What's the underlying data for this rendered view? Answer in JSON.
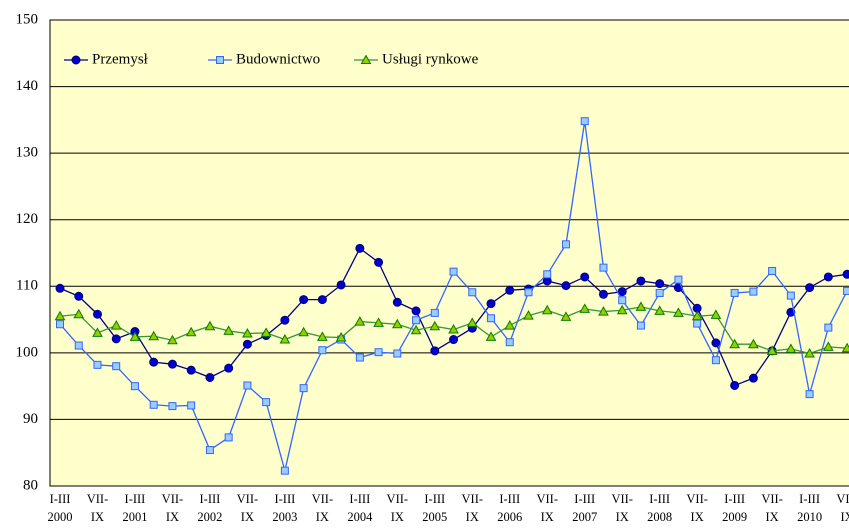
{
  "chart_data": {
    "type": "line",
    "categories": [
      [
        "I-III",
        "2000"
      ],
      null,
      [
        "VII-",
        "IX"
      ],
      null,
      [
        "I-III",
        "2001"
      ],
      null,
      [
        "VII-",
        "IX"
      ],
      null,
      [
        "I-III",
        "2002"
      ],
      null,
      [
        "VII-",
        "IX"
      ],
      null,
      [
        "I-III",
        "2003"
      ],
      null,
      [
        "VII-",
        "IX"
      ],
      null,
      [
        "I-III",
        "2004"
      ],
      null,
      [
        "VII-",
        "IX"
      ],
      null,
      [
        "I-III",
        "2005"
      ],
      null,
      [
        "VII-",
        "IX"
      ],
      null,
      [
        "I-III",
        "2006"
      ],
      null,
      [
        "VII-",
        "IX"
      ],
      null,
      [
        "I-III",
        "2007"
      ],
      null,
      [
        "VII-",
        "IX"
      ],
      null,
      [
        "I-III",
        "2008"
      ],
      null,
      [
        "VII-",
        "IX"
      ],
      null,
      [
        "I-III",
        "2009"
      ],
      null,
      [
        "VII-",
        "IX"
      ],
      null,
      [
        "I-III",
        "2010"
      ],
      null,
      [
        "VII-",
        "IX"
      ]
    ],
    "series": [
      {
        "name": "Przemysł",
        "color": "#000080",
        "marker": "circle",
        "values": [
          109.7,
          108.5,
          105.8,
          102.1,
          103.2,
          98.6,
          98.3,
          97.4,
          96.3,
          97.7,
          101.3,
          102.6,
          104.9,
          108.0,
          108.0,
          110.2,
          115.7,
          113.6,
          107.6,
          106.3,
          100.3,
          102.0,
          103.7,
          107.4,
          109.4,
          109.6,
          110.8,
          110.1,
          111.4,
          108.8,
          109.2,
          110.8,
          110.4,
          109.8,
          106.7,
          101.5,
          95.1,
          96.2,
          100.3,
          106.1,
          109.8,
          111.4,
          111.8
        ]
      },
      {
        "name": "Budownictwo",
        "color": "#3366ff",
        "marker": "square",
        "values": [
          104.3,
          101.1,
          98.2,
          98.0,
          95.0,
          92.2,
          92.0,
          92.1,
          85.4,
          87.3,
          95.1,
          92.6,
          82.3,
          94.7,
          100.4,
          102.0,
          99.3,
          100.1,
          99.9,
          104.9,
          106.0,
          112.2,
          109.1,
          105.2,
          101.6,
          109.1,
          111.8,
          116.3,
          134.8,
          112.8,
          107.9,
          104.1,
          109.0,
          111.0,
          104.4,
          98.9,
          109.0,
          109.2,
          112.3,
          108.6,
          93.8,
          103.8,
          109.3
        ]
      },
      {
        "name": "Usługi rynkowe",
        "color": "#339933",
        "marker": "triangle",
        "values": [
          105.5,
          105.8,
          103.0,
          104.1,
          102.4,
          102.5,
          101.9,
          103.1,
          104.0,
          103.3,
          102.9,
          103.0,
          102.0,
          103.1,
          102.4,
          102.3,
          104.7,
          104.5,
          104.3,
          103.4,
          104.0,
          103.5,
          104.5,
          102.4,
          104.1,
          105.6,
          106.4,
          105.4,
          106.6,
          106.2,
          106.4,
          106.9,
          106.3,
          106.0,
          105.5,
          105.7,
          101.3,
          101.3,
          100.3,
          100.6,
          99.9,
          100.9,
          100.7
        ]
      }
    ],
    "ylim": [
      80,
      150
    ],
    "yticks": [
      80,
      90,
      100,
      110,
      120,
      130,
      140,
      150
    ],
    "grid": true,
    "legend": "upper left"
  }
}
